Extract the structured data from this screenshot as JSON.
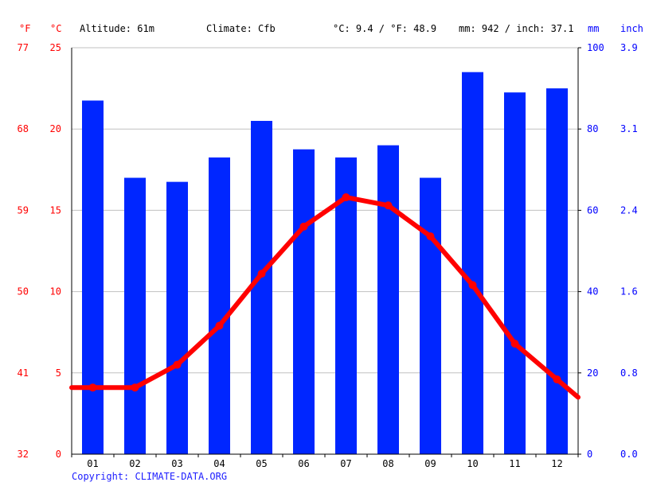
{
  "header": {
    "unit_f": "°F",
    "unit_c": "°C",
    "altitude": "Altitude: 61m",
    "climate": "Climate: Cfb",
    "temp_avg": "°C: 9.4 / °F: 48.9",
    "precip_total": "mm: 942 / inch: 37.1",
    "unit_mm": "mm",
    "unit_inch": "inch"
  },
  "copyright": "Copyright: CLIMATE-DATA.ORG",
  "colors": {
    "temperature": "#ff0000",
    "precipitation": "#0026ff",
    "grid": "#c0c0c0",
    "copyright": "#1d1dff"
  },
  "chart_data": {
    "type": "bar",
    "categories": [
      "01",
      "02",
      "03",
      "04",
      "05",
      "06",
      "07",
      "08",
      "09",
      "10",
      "11",
      "12"
    ],
    "series": [
      {
        "type": "bar",
        "axis": "right",
        "values": [
          87,
          68,
          67,
          73,
          82,
          75,
          73,
          76,
          68,
          94,
          89,
          90
        ]
      },
      {
        "type": "line",
        "axis": "left",
        "values": [
          4.1,
          4.1,
          5.5,
          7.9,
          11.1,
          14.0,
          15.8,
          15.3,
          13.4,
          10.4,
          6.8,
          4.6
        ]
      }
    ],
    "y_left_c": {
      "ticks": [
        "0",
        "5",
        "10",
        "15",
        "20",
        "25"
      ],
      "range": [
        0,
        25
      ]
    },
    "y_left_f": {
      "ticks": [
        "32",
        "41",
        "50",
        "59",
        "68",
        "77"
      ]
    },
    "y_right_mm": {
      "ticks": [
        "0",
        "20",
        "40",
        "60",
        "80",
        "100"
      ],
      "range": [
        0,
        100
      ]
    },
    "y_right_inch": {
      "ticks": [
        "0.0",
        "0.8",
        "1.6",
        "2.4",
        "3.1",
        "3.9"
      ]
    },
    "grid": true
  }
}
